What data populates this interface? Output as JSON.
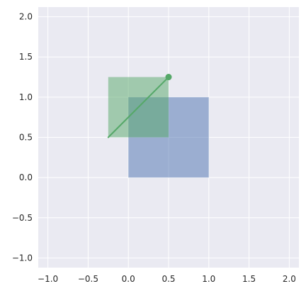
{
  "chart_data": {
    "type": "scatter",
    "title": "",
    "xlabel": "",
    "ylabel": "",
    "xlim": [
      -1.12,
      2.12
    ],
    "ylim": [
      -1.12,
      2.12
    ],
    "xticks": [
      -1.0,
      -0.5,
      0.0,
      0.5,
      1.0,
      1.5,
      2.0
    ],
    "yticks": [
      -1.0,
      -0.5,
      0.0,
      0.5,
      1.0,
      1.5,
      2.0
    ],
    "xtick_labels": [
      "−1.0",
      "−0.5",
      "0.0",
      "0.5",
      "1.0",
      "1.5",
      "2.0"
    ],
    "ytick_labels": [
      "−1.0",
      "−0.5",
      "0.0",
      "0.5",
      "1.0",
      "1.5",
      "2.0"
    ],
    "grid": true,
    "background_color": "#eaeaf2",
    "rectangles": [
      {
        "x": [
          0.0,
          1.0
        ],
        "y": [
          0.0,
          1.0
        ],
        "color": "#4c72b0",
        "alpha": 0.5
      },
      {
        "x": [
          -0.25,
          0.5
        ],
        "y": [
          0.5,
          1.25
        ],
        "color": "#55a868",
        "alpha": 0.5
      }
    ],
    "segment": {
      "x": [
        -0.25,
        0.5
      ],
      "y": [
        0.5,
        1.25
      ],
      "color": "#55a868"
    },
    "points": [
      {
        "x": 0.5,
        "y": 1.25,
        "color": "#55a868"
      }
    ]
  }
}
